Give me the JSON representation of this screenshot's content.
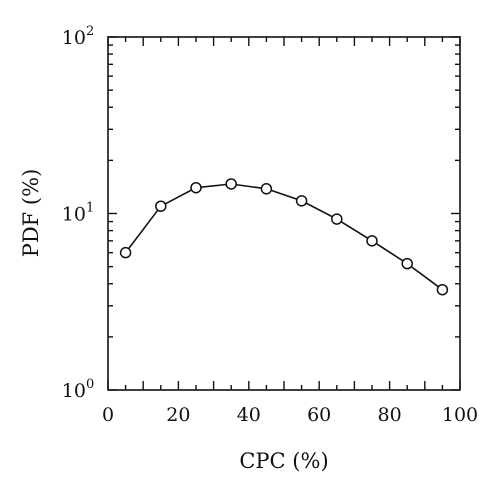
{
  "chart_data": {
    "type": "line",
    "title": "",
    "xlabel": "CPC (%)",
    "ylabel": "PDF (%)",
    "xlim": [
      0,
      100
    ],
    "ylim": [
      1,
      100
    ],
    "yscale": "log",
    "grid": false,
    "legend": "none",
    "x_ticks": [
      {
        "value": 0,
        "label": "0"
      },
      {
        "value": 20,
        "label": "20"
      },
      {
        "value": 40,
        "label": "40"
      },
      {
        "value": 60,
        "label": "60"
      },
      {
        "value": 80,
        "label": "80"
      },
      {
        "value": 100,
        "label": "100"
      }
    ],
    "y_ticks": [
      {
        "value": 1,
        "base": "10",
        "exp": "0"
      },
      {
        "value": 10,
        "base": "10",
        "exp": "1"
      },
      {
        "value": 100,
        "base": "10",
        "exp": "2"
      }
    ],
    "x": [
      5,
      15,
      25,
      35,
      45,
      55,
      65,
      75,
      85,
      95
    ],
    "series": [
      {
        "values": [
          6.0,
          11.0,
          14.0,
          14.7,
          13.8,
          11.8,
          9.3,
          7.0,
          5.2,
          3.7
        ],
        "color": "#111111",
        "marker": "open-circle"
      }
    ]
  }
}
